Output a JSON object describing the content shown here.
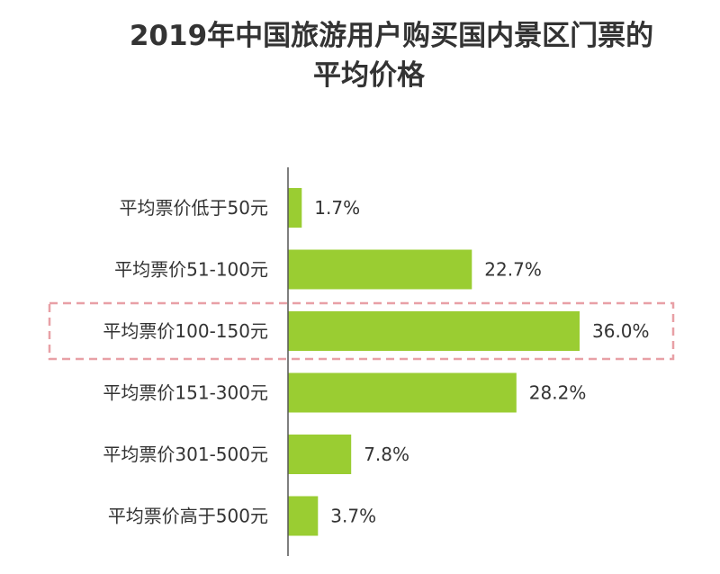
{
  "chart_data": {
    "type": "bar",
    "orientation": "horizontal",
    "title": "2019年中国旅游用户购买国内景区门票的平均价格",
    "title_lines": [
      "2019年中国旅游用户购买国内景区门票的",
      "平均价格"
    ],
    "categories": [
      "平均票价低于50元",
      "平均票价51-100元",
      "平均票价100-150元",
      "平均票价151-300元",
      "平均票价301-500元",
      "平均票价高于500元"
    ],
    "values": [
      1.7,
      22.7,
      36.0,
      28.2,
      7.8,
      3.7
    ],
    "value_labels": [
      "1.7%",
      "22.7%",
      "36.0%",
      "28.2%",
      "7.8%",
      "3.7%"
    ],
    "unit": "%",
    "xlim": [
      0,
      40
    ],
    "grid": false,
    "bar_color": "#9acd32",
    "highlight_index": 2,
    "highlight_color": "#e8a0a6"
  }
}
